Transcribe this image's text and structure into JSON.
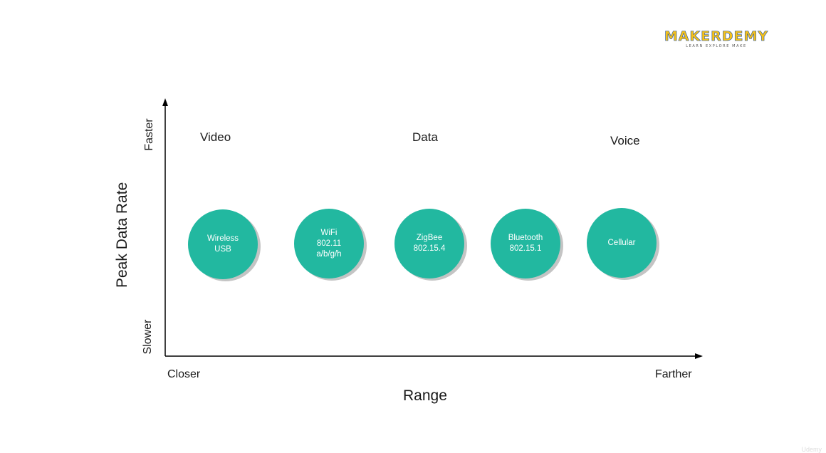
{
  "logo": {
    "name": "MAKERDEMY",
    "tagline": "LEARN EXPLORE MAKE"
  },
  "axes": {
    "y_title": "Peak Data Rate",
    "y_high": "Faster",
    "y_low": "Slower",
    "x_title": "Range",
    "x_low": "Closer",
    "x_high": "Farther"
  },
  "categories": {
    "video": "Video",
    "data": "Data",
    "voice": "Voice"
  },
  "technologies": [
    {
      "line1": "Wireless",
      "line2": "USB",
      "line3": ""
    },
    {
      "line1": "WiFi",
      "line2": "802.11",
      "line3": "a/b/g/h"
    },
    {
      "line1": "ZigBee",
      "line2": "802.15.4",
      "line3": ""
    },
    {
      "line1": "Bluetooth",
      "line2": "802.15.1",
      "line3": ""
    },
    {
      "line1": "Cellular",
      "line2": "",
      "line3": ""
    }
  ],
  "watermark": "Udemy",
  "colors": {
    "circle_fill": "#22b8a0",
    "circle_shadow": "#c4c4c4",
    "axis": "#000000",
    "logo_yellow": "#f6c21a",
    "logo_blue": "#1d4fa3"
  }
}
